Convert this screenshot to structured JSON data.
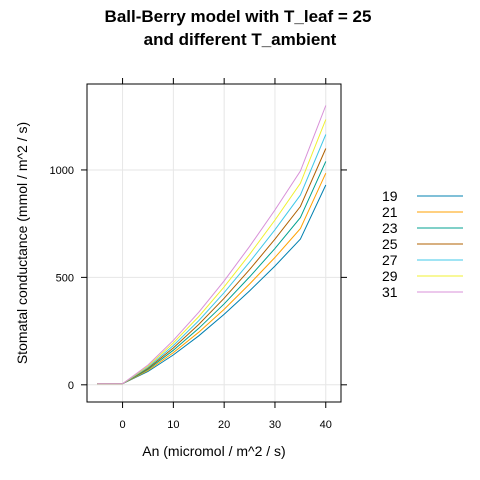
{
  "chart_data": {
    "type": "line",
    "title": "Ball-Berry model with T_leaf = 25 and different T_ambient",
    "title_lines": [
      "Ball-Berry model with T_leaf = 25",
      "and different T_ambient"
    ],
    "xlabel": "An (micromol / m^2 / s)",
    "ylabel": "Stomatal conductance (mmol / m^2 / s)",
    "xlim": [
      -7,
      43
    ],
    "ylim": [
      -80,
      1400
    ],
    "xticks": [
      0,
      10,
      20,
      30,
      40
    ],
    "yticks": [
      0,
      500,
      1000
    ],
    "grid": true,
    "legend_position": "right",
    "x": [
      -5,
      0,
      5,
      10,
      15,
      20,
      25,
      30,
      35,
      40
    ],
    "series": [
      {
        "name": "19",
        "color": "#0080B0",
        "values": [
          5,
          5,
          62,
          139,
          228,
          328,
          437,
          553,
          678,
          930
        ]
      },
      {
        "name": "21",
        "color": "#FFA000",
        "values": [
          5,
          5,
          67,
          150,
          245,
          352,
          469,
          593,
          727,
          985
        ]
      },
      {
        "name": "23",
        "color": "#00A090",
        "values": [
          5,
          5,
          72,
          161,
          263,
          377,
          502,
          635,
          778,
          1040
        ]
      },
      {
        "name": "25",
        "color": "#B06000",
        "values": [
          5,
          5,
          77,
          172,
          281,
          403,
          536,
          678,
          830,
          1100
        ]
      },
      {
        "name": "27",
        "color": "#40C8E8",
        "values": [
          5,
          5,
          82,
          183,
          299,
          429,
          571,
          722,
          883,
          1165
        ]
      },
      {
        "name": "29",
        "color": "#F0F030",
        "values": [
          5,
          5,
          87,
          195,
          318,
          456,
          607,
          767,
          938,
          1235
        ]
      },
      {
        "name": "31",
        "color": "#D890D8",
        "values": [
          5,
          5,
          92,
          207,
          338,
          484,
          644,
          814,
          995,
          1300
        ]
      }
    ]
  }
}
